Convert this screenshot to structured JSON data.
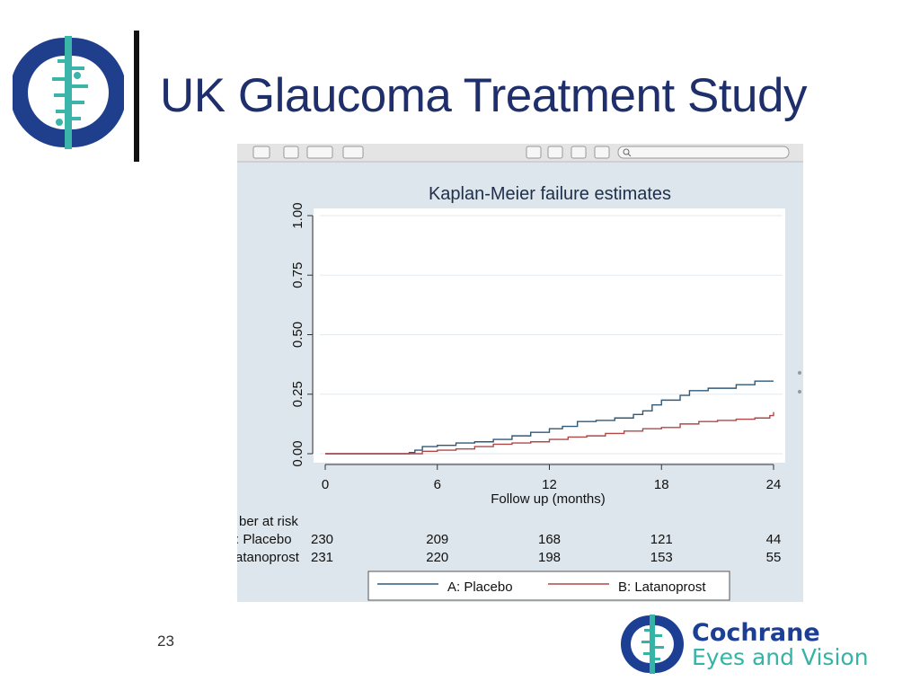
{
  "slide": {
    "title": "UK Glaucoma Treatment Study",
    "page_number": "23"
  },
  "brand": {
    "logo_text_line1": "Cochrane",
    "logo_text_line2": "Eyes and Vision",
    "colors": {
      "navy": "#1f2f6b",
      "teal": "#35b3a7",
      "brand_blue": "#1c3f94"
    }
  },
  "viewer_toolbar": {
    "icons": [
      "hand-icon",
      "text-select-icon",
      "grid-icon",
      "dropdown-icon",
      "pen-icon",
      "single-page-icon",
      "two-page-icon",
      "sidebar-icon",
      "thumbnails-icon",
      "search-icon"
    ]
  },
  "chart_data": {
    "type": "line",
    "title": "Kaplan-Meier failure estimates",
    "xlabel": "Follow up (months)",
    "ylabel": "",
    "xlim": [
      0,
      24
    ],
    "ylim": [
      0,
      1
    ],
    "xticks": [
      "0",
      "6",
      "12",
      "18",
      "24"
    ],
    "yticks": [
      "0.00",
      "0.25",
      "0.50",
      "0.75",
      "1.00"
    ],
    "grid": true,
    "legend_position": "bottom",
    "series": [
      {
        "name": "A: Placebo",
        "color": "#2e5a7a",
        "points": [
          [
            0,
            0
          ],
          [
            4.3,
            0
          ],
          [
            4.5,
            0.005
          ],
          [
            4.8,
            0.015
          ],
          [
            5.2,
            0.03
          ],
          [
            6,
            0.035
          ],
          [
            7,
            0.045
          ],
          [
            8,
            0.05
          ],
          [
            9,
            0.06
          ],
          [
            10,
            0.075
          ],
          [
            11,
            0.09
          ],
          [
            12,
            0.105
          ],
          [
            12.7,
            0.115
          ],
          [
            13.5,
            0.135
          ],
          [
            14.5,
            0.14
          ],
          [
            15.5,
            0.15
          ],
          [
            16.5,
            0.165
          ],
          [
            17,
            0.18
          ],
          [
            17.5,
            0.205
          ],
          [
            18,
            0.225
          ],
          [
            19,
            0.245
          ],
          [
            19.5,
            0.265
          ],
          [
            20.5,
            0.275
          ],
          [
            22,
            0.29
          ],
          [
            23,
            0.305
          ],
          [
            24,
            0.305
          ]
        ]
      },
      {
        "name": "B: Latanoprost",
        "color": "#b04848",
        "points": [
          [
            0,
            0
          ],
          [
            4.5,
            0
          ],
          [
            5.2,
            0.01
          ],
          [
            6,
            0.015
          ],
          [
            7,
            0.02
          ],
          [
            8,
            0.03
          ],
          [
            9,
            0.04
          ],
          [
            10,
            0.045
          ],
          [
            11,
            0.05
          ],
          [
            12,
            0.06
          ],
          [
            13,
            0.07
          ],
          [
            14,
            0.075
          ],
          [
            15,
            0.085
          ],
          [
            16,
            0.095
          ],
          [
            17,
            0.105
          ],
          [
            18,
            0.11
          ],
          [
            19,
            0.125
          ],
          [
            20,
            0.135
          ],
          [
            21,
            0.14
          ],
          [
            22,
            0.145
          ],
          [
            23,
            0.15
          ],
          [
            23.8,
            0.16
          ],
          [
            24,
            0.175
          ]
        ]
      }
    ],
    "risk_table": {
      "header": "ber at risk",
      "times": [
        "0",
        "6",
        "12",
        "18",
        "24"
      ],
      "rows": [
        {
          "label": ": Placebo",
          "values": [
            "230",
            "209",
            "168",
            "121",
            "44"
          ]
        },
        {
          "label": "atanoprost",
          "values": [
            "231",
            "220",
            "198",
            "153",
            "55"
          ]
        }
      ]
    }
  }
}
